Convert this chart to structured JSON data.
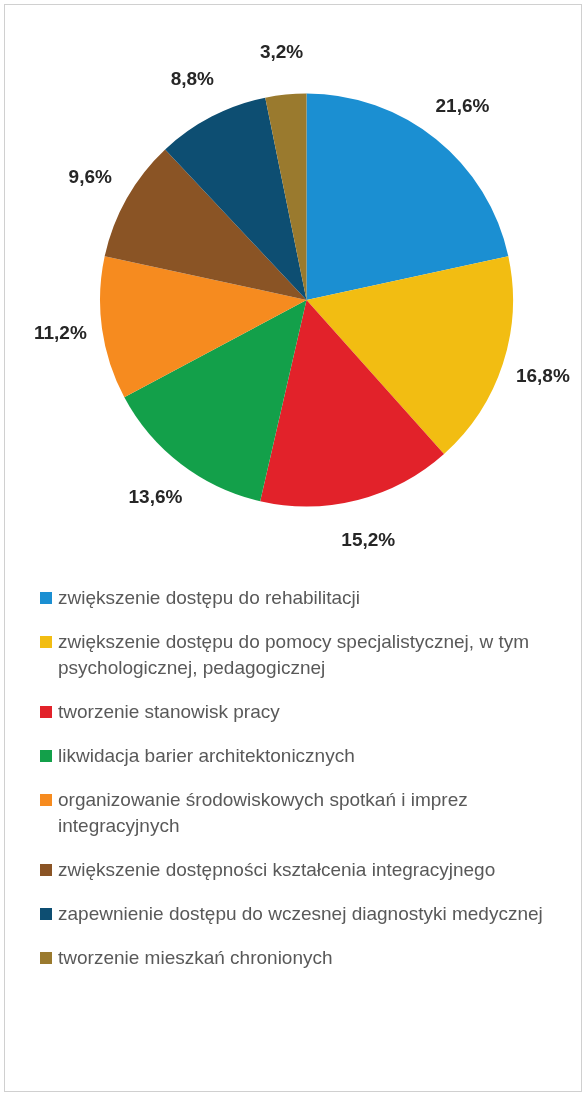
{
  "chart_data": {
    "type": "pie",
    "categories": [
      "zwiększenie dostępu do rehabilitacji",
      "zwiększenie dostępu do pomocy specjalistycznej, w tym psychologicznej, pedagogicznej",
      "tworzenie stanowisk pracy",
      "likwidacja barier architektonicznych",
      "organizowanie środowiskowych spotkań i imprez integracyjnych",
      "zwiększenie dostępności kształcenia integracyjnego",
      "zapewnienie dostępu do wczesnej diagnostyki medycznej",
      "tworzenie mieszkań chronionych"
    ],
    "values": [
      21.6,
      16.8,
      15.2,
      13.6,
      11.2,
      9.6,
      8.8,
      3.2
    ],
    "value_labels": [
      "21,6%",
      "16,8%",
      "15,2%",
      "13,6%",
      "11,2%",
      "9,6%",
      "8,8%",
      "3,2%"
    ],
    "colors": [
      "#1b8fd2",
      "#f2bd12",
      "#e2222a",
      "#13a04a",
      "#f68b1f",
      "#8a5425",
      "#0d4e72",
      "#9a7a2e"
    ],
    "legend": "bottom"
  }
}
